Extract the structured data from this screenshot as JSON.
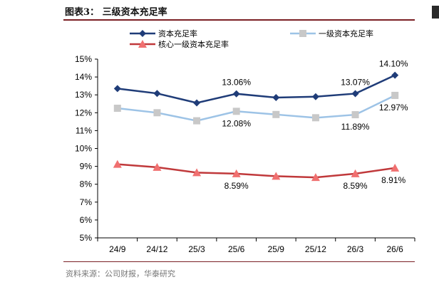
{
  "figure": {
    "title": "图表3：  三级资本充足率",
    "source": "资料来源：公司财报，华泰研究"
  },
  "chart_data": {
    "type": "line",
    "title": "",
    "xlabel": "",
    "ylabel": "",
    "categories": [
      "24/9",
      "24/12",
      "25/3",
      "25/6",
      "25/9",
      "25/12",
      "26/3",
      "26/6"
    ],
    "ylim": [
      5,
      15
    ],
    "yticks": [
      5,
      6,
      7,
      8,
      9,
      10,
      11,
      12,
      13,
      14,
      15
    ],
    "ytick_labels": [
      "5%",
      "6%",
      "7%",
      "8%",
      "9%",
      "10%",
      "11%",
      "12%",
      "13%",
      "14%",
      "15%"
    ],
    "grid": false,
    "legend_position": "top",
    "series": [
      {
        "name": "资本充足率",
        "color": "#1f3c78",
        "marker": "diamond",
        "values": [
          13.35,
          13.08,
          12.55,
          13.06,
          12.85,
          12.9,
          13.07,
          14.1
        ]
      },
      {
        "name": "一级资本充足率",
        "color": "#9dc3e6",
        "marker": "square",
        "marker_color": "#c8c8c8",
        "values": [
          12.25,
          12.0,
          11.55,
          12.08,
          11.9,
          11.72,
          11.89,
          12.97
        ]
      },
      {
        "name": "核心一级资本充足率",
        "color": "#c0393b",
        "marker": "triangle",
        "marker_color": "#f07070",
        "values": [
          9.12,
          8.95,
          8.65,
          8.59,
          8.45,
          8.38,
          8.59,
          8.91
        ]
      }
    ],
    "data_labels": [
      {
        "series": 0,
        "index": 3,
        "text": "13.06%",
        "pos": "above"
      },
      {
        "series": 0,
        "index": 6,
        "text": "13.07%",
        "pos": "above"
      },
      {
        "series": 0,
        "index": 7,
        "text": "14.10%",
        "pos": "above"
      },
      {
        "series": 1,
        "index": 3,
        "text": "12.08%",
        "pos": "below"
      },
      {
        "series": 1,
        "index": 6,
        "text": "11.89%",
        "pos": "below"
      },
      {
        "series": 1,
        "index": 7,
        "text": "12.97%",
        "pos": "below"
      },
      {
        "series": 2,
        "index": 3,
        "text": "8.59%",
        "pos": "below"
      },
      {
        "series": 2,
        "index": 6,
        "text": "8.59%",
        "pos": "below"
      },
      {
        "series": 2,
        "index": 7,
        "text": "8.91%",
        "pos": "below"
      }
    ]
  }
}
